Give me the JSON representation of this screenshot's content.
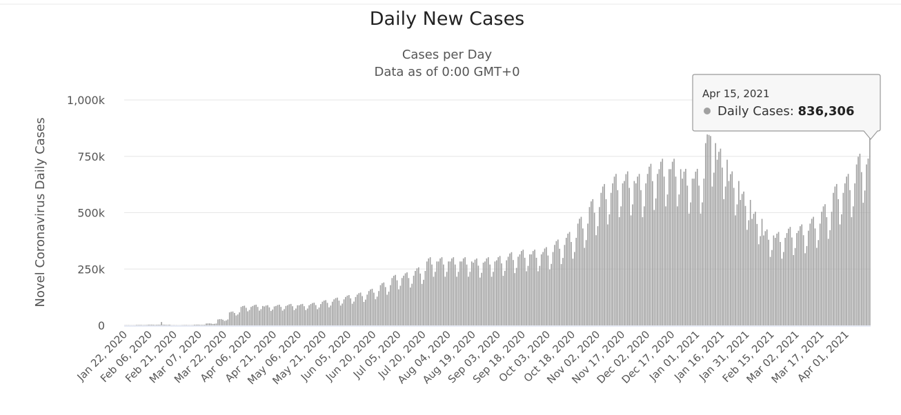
{
  "chart_data": {
    "type": "bar",
    "title": "Daily New Cases",
    "subtitle": [
      "Cases per Day",
      "Data as of 0:00 GMT+0"
    ],
    "ylabel": "Novel Coronavirus Daily Cases",
    "xlabel": "",
    "ylim": [
      0,
      1000000
    ],
    "y_ticks": [
      0,
      250000,
      500000,
      750000,
      1000000
    ],
    "y_tick_labels": [
      "0",
      "250k",
      "500k",
      "750k",
      "1,000k"
    ],
    "x_start_date": "2020-01-22",
    "x_end_date": "2021-04-15",
    "x_tick_labels": [
      "Jan 22, 2020",
      "Feb 06, 2020",
      "Feb 21, 2020",
      "Mar 07, 2020",
      "Mar 22, 2020",
      "Apr 06, 2020",
      "Apr 21, 2020",
      "May 06, 2020",
      "May 21, 2020",
      "Jun 05, 2020",
      "Jun 20, 2020",
      "Jul 05, 2020",
      "Jul 20, 2020",
      "Aug 04, 2020",
      "Aug 19, 2020",
      "Sep 03, 2020",
      "Sep 18, 2020",
      "Oct 03, 2020",
      "Oct 18, 2020",
      "Nov 02, 2020",
      "Nov 17, 2020",
      "Dec 02, 2020",
      "Dec 17, 2020",
      "Jan 01, 2021",
      "Jan 16, 2021",
      "Jan 31, 2021",
      "Feb 15, 2021",
      "Mar 02, 2021",
      "Mar 17, 2021",
      "Apr 01, 2021"
    ],
    "x_tick_interval_days": 15,
    "series": [
      {
        "name": "Daily Cases",
        "color": "#a0a0a0",
        "weekly_avg_thousands": [
          1,
          2,
          3,
          3,
          1,
          1.5,
          3,
          8,
          25,
          55,
          78,
          82,
          80,
          82,
          85,
          85,
          90,
          100,
          110,
          120,
          130,
          145,
          170,
          200,
          210,
          230,
          270,
          270,
          270,
          270,
          265,
          270,
          275,
          290,
          300,
          300,
          310,
          340,
          370,
          430,
          500,
          560,
          600,
          610,
          600,
          640,
          660,
          660,
          620,
          620,
          770,
          700,
          610,
          530,
          450,
          380,
          370,
          390,
          400,
          430,
          480,
          560,
          600,
          680
        ],
        "weekday_factors_from_start": [
          1.05,
          1.1,
          1.12,
          1.0,
          0.8,
          0.88,
          1.05
        ],
        "daily_overrides_thousands": [
          {
            "date": "2020-02-13",
            "value": 15
          },
          {
            "date": "2021-01-08",
            "value": 845
          },
          {
            "date": "2021-01-09",
            "value": 840
          },
          {
            "date": "2021-04-14",
            "value": 740
          },
          {
            "date": "2021-04-15",
            "value": 836.306
          }
        ]
      }
    ],
    "legend": "none",
    "grid": true
  },
  "tooltip": {
    "date": "Apr 15, 2021",
    "series_label": "Daily Cases: ",
    "value": "836,306",
    "dot_color": "#a0a0a0"
  }
}
